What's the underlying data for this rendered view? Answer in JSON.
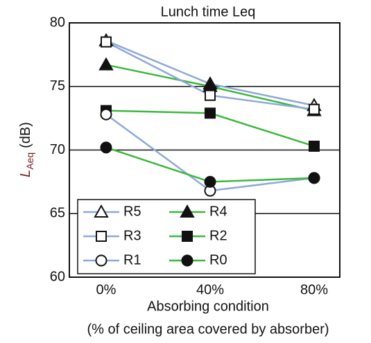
{
  "chart_data": {
    "type": "line",
    "title": "Lunch time Leq",
    "ylabel": [
      "L",
      "Aeq",
      "(dB)"
    ],
    "xlabel": "Absorbing condition",
    "note": "(% of ceiling area covered by absorber)",
    "categories": [
      "0%",
      "40%",
      "80%"
    ],
    "ylim": [
      60,
      80
    ],
    "yticks": [
      60,
      65,
      70,
      75,
      80
    ],
    "grid": true,
    "series": [
      {
        "name": "R5",
        "color": "#8fa8d8",
        "marker": "triangle",
        "filled": false,
        "values": [
          78.6,
          75.2,
          73.5
        ]
      },
      {
        "name": "R4",
        "color": "#3cb83c",
        "marker": "triangle",
        "filled": true,
        "values": [
          76.7,
          75.0,
          73.1
        ]
      },
      {
        "name": "R3",
        "color": "#8fa8d8",
        "marker": "square",
        "filled": false,
        "values": [
          78.5,
          74.3,
          73.2
        ]
      },
      {
        "name": "R2",
        "color": "#3cb83c",
        "marker": "square",
        "filled": true,
        "values": [
          73.1,
          72.9,
          70.3
        ]
      },
      {
        "name": "R1",
        "color": "#8fa8d8",
        "marker": "circle",
        "filled": false,
        "values": [
          72.8,
          66.8,
          67.8
        ]
      },
      {
        "name": "R0",
        "color": "#3cb83c",
        "marker": "circle",
        "filled": true,
        "values": [
          70.2,
          67.5,
          67.8
        ]
      }
    ]
  }
}
